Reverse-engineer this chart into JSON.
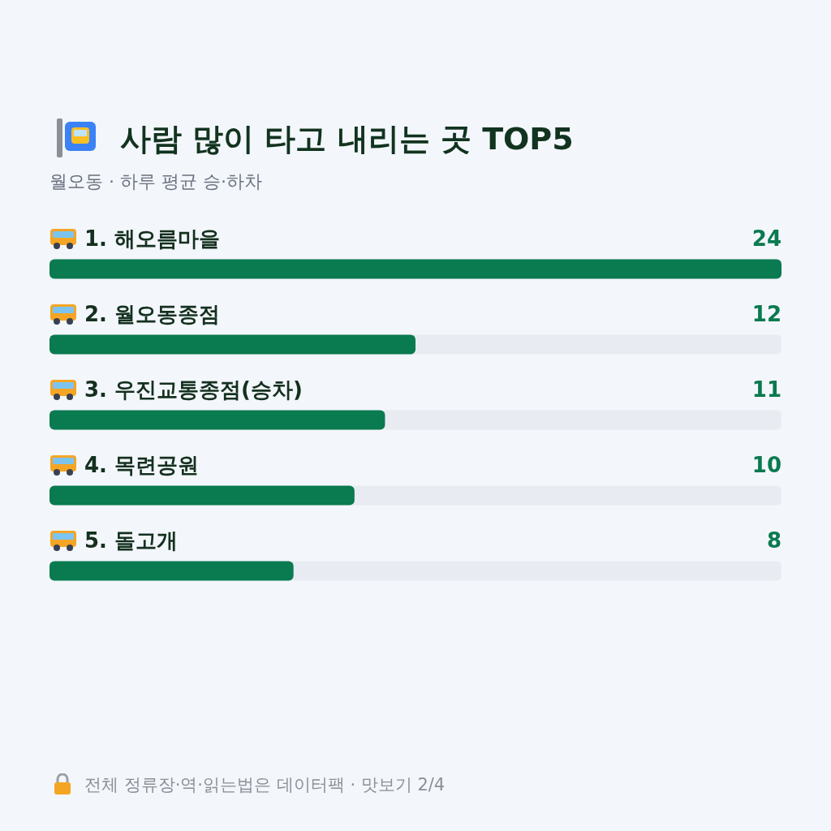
{
  "chart_data": {
    "type": "bar",
    "orientation": "horizontal",
    "title": "사람 많이 타고 내리는 곳 TOP5",
    "subtitle": "월오동 · 하루 평균 승·하차",
    "categories": [
      "1. 해오름마을",
      "2. 월오동종점",
      "3. 우진교통종점(승차)",
      "4. 목련공원",
      "5. 돌고개"
    ],
    "values": [
      24,
      12,
      11,
      10,
      8
    ],
    "color": "#0a7a50",
    "xlim": [
      0,
      24
    ],
    "data_labels": true,
    "tick_labels": "y",
    "annotations": [
      "전체 정류장·역·읽는법은 데이터팩 · 맛보기 2/4"
    ]
  }
}
